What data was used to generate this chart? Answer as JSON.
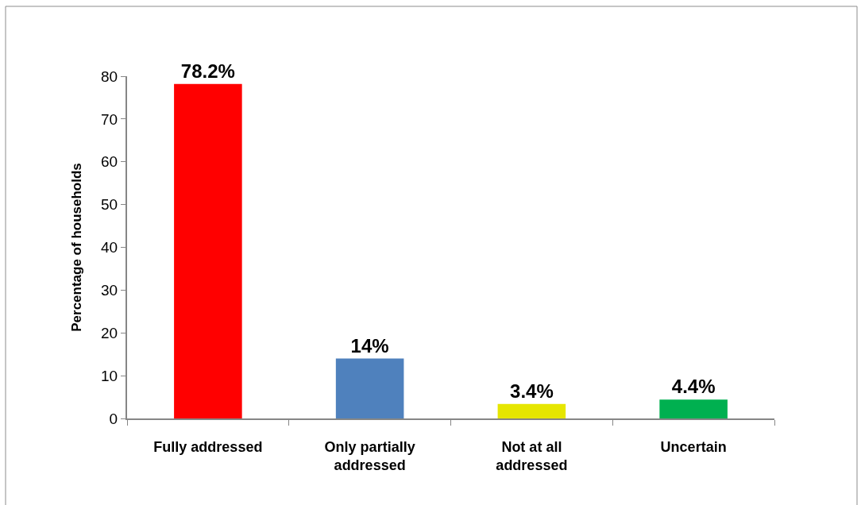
{
  "chart_data": {
    "type": "bar",
    "ylabel": "Percentage of households",
    "categories": [
      "Fully addressed",
      "Only partially addressed",
      "Not at all addressed",
      "Uncertain"
    ],
    "values": [
      78.2,
      14,
      3.4,
      4.4
    ],
    "value_labels": [
      "78.2%",
      "14%",
      "3.4%",
      "4.4%"
    ],
    "colors": [
      "#ff0000",
      "#4f81bd",
      "#e6e600",
      "#00b050"
    ],
    "ylim": [
      0,
      80
    ],
    "yticks": [
      0,
      10,
      20,
      30,
      40,
      50,
      60,
      70,
      80
    ]
  }
}
